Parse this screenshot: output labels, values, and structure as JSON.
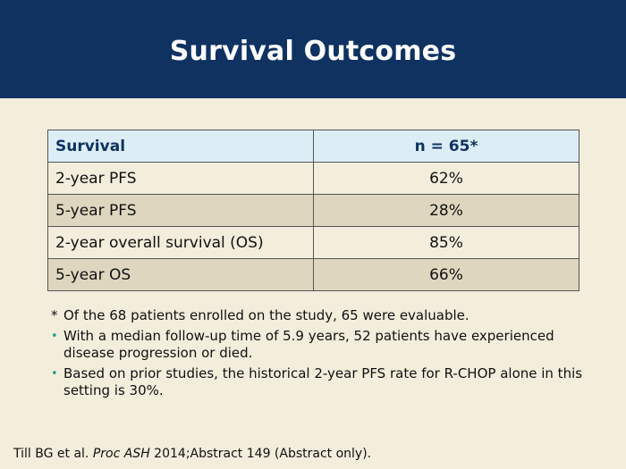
{
  "title": "Survival Outcomes",
  "table": {
    "headers": [
      "Survival",
      "n = 65*"
    ],
    "rows": [
      [
        "2-year PFS",
        "62%"
      ],
      [
        "5-year PFS",
        "28%"
      ],
      [
        "2-year overall survival (OS)",
        "85%"
      ],
      [
        "5-year OS",
        "66%"
      ]
    ]
  },
  "notes": [
    {
      "marker": "*",
      "text": "Of the 68 patients enrolled on the study, 65 were evaluable."
    },
    {
      "marker": "•",
      "text": "With a median follow-up time of 5.9 years, 52 patients have experienced disease progression or died."
    },
    {
      "marker": "•",
      "text": "Based on prior studies, the historical 2-year PFS rate for R-CHOP alone in this setting is 30%."
    }
  ],
  "citation": {
    "before": "Till BG et al. ",
    "journal": "Proc ASH",
    "after": " 2014;Abstract 149 (Abstract only)."
  },
  "colors": {
    "header_bg": "#0f3261",
    "page_bg": "#f3eddc",
    "table_header_bg": "#dcedf5",
    "row_alt_bg": "#dfd6bf",
    "bullet": "#2a9d8f"
  }
}
